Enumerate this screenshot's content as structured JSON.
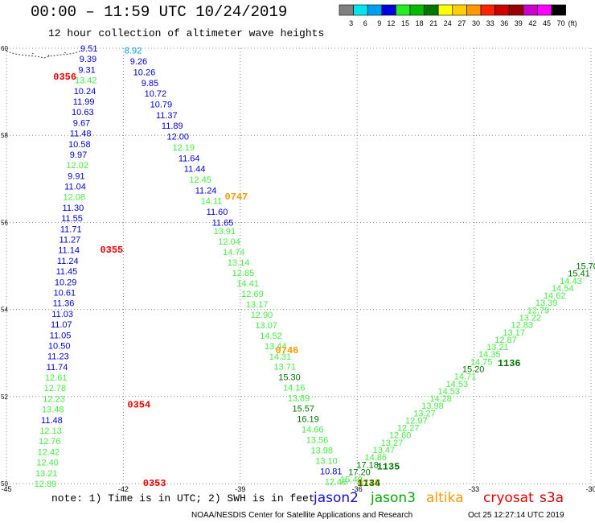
{
  "header": {
    "title": "00:00 – 11:59 UTC 10/24/2019",
    "subtitle": "12 hour collection of altimeter wave heights"
  },
  "colorbar": {
    "unit": "(ft)",
    "bins": [
      {
        "color": "#808080",
        "label": "3"
      },
      {
        "color": "#00e5ee",
        "label": "6"
      },
      {
        "color": "#00a0f0",
        "label": "9"
      },
      {
        "color": "#0000dd",
        "label": "12"
      },
      {
        "color": "#22ee22",
        "label": "15"
      },
      {
        "color": "#00bb00",
        "label": "18"
      },
      {
        "color": "#007700",
        "label": "21"
      },
      {
        "color": "#ffff00",
        "label": "24"
      },
      {
        "color": "#ffd000",
        "label": "27"
      },
      {
        "color": "#ff9900",
        "label": "30"
      },
      {
        "color": "#ff2200",
        "label": "33"
      },
      {
        "color": "#cc0000",
        "label": "36"
      },
      {
        "color": "#990000",
        "label": "39"
      },
      {
        "color": "#cc00cc",
        "label": "42"
      },
      {
        "color": "#ff00ff",
        "label": "45"
      },
      {
        "color": "#000000",
        "label": "70"
      }
    ]
  },
  "legend": {
    "note": "note: 1) Time is in UTC; 2) SWH is in feet",
    "missions": [
      {
        "name": "jason2",
        "color": "#1010ee"
      },
      {
        "name": "jason3",
        "color": "#00aa00"
      },
      {
        "name": "altika",
        "color": "#ff9900"
      },
      {
        "name": "cryosat",
        "color": "#ee0000"
      },
      {
        "name": "s3a",
        "color": "#cc0000"
      }
    ]
  },
  "footer": {
    "credit": "NOAA/NESDIS Center for Satellite Applications and Research",
    "timestamp": "Oct 25 12:27:14 UTC 2019"
  },
  "chart_data": {
    "type": "scatter",
    "xlim": [
      -45,
      -30
    ],
    "ylim": [
      50,
      60
    ],
    "x_ticks": [
      "-45",
      "-42",
      "-39",
      "-36",
      "-33",
      "-30"
    ],
    "y_ticks": [
      "50",
      "52",
      "54",
      "56",
      "58",
      "60"
    ],
    "grid": "dotted",
    "colors": {
      "light_blue": "#00a0f0",
      "blue": "#0000dd",
      "light_green": "#44ee44",
      "dark_green": "#007700",
      "red": "#ee0000",
      "orange": "#ff9900"
    },
    "time_labels": [
      {
        "text": "0356",
        "x": -43.5,
        "y": 59.35,
        "color": "red"
      },
      {
        "text": "0355",
        "x": -42.3,
        "y": 55.38,
        "color": "red"
      },
      {
        "text": "0354",
        "x": -41.6,
        "y": 51.82,
        "color": "red"
      },
      {
        "text": "0353",
        "x": -41.2,
        "y": 50.02,
        "color": "red"
      },
      {
        "text": "0747",
        "x": -39.1,
        "y": 56.6,
        "color": "orange"
      },
      {
        "text": "0746",
        "x": -37.8,
        "y": 53.07,
        "color": "orange"
      },
      {
        "text": "0745",
        "x": -35.7,
        "y": 50.02,
        "color": "orange"
      },
      {
        "text": "1136",
        "x": -32.1,
        "y": 52.77,
        "color": "dark_green"
      },
      {
        "text": "1135",
        "x": -35.2,
        "y": 50.4,
        "color": "dark_green"
      },
      {
        "text": "1134",
        "x": -35.7,
        "y": 50.02,
        "color": "dark_green"
      }
    ],
    "tracks": [
      {
        "x0": -42.88,
        "y0": 60.0,
        "x1": -44.0,
        "y1": 50.0,
        "slant": -0.12,
        "values": [
          {
            "v": "9.51",
            "c": "blue"
          },
          {
            "v": "9.39",
            "c": "blue"
          },
          {
            "v": "9.31",
            "c": "blue"
          },
          {
            "v": "13.42",
            "c": "light_green"
          },
          {
            "v": "10.24",
            "c": "blue"
          },
          {
            "v": "11.99",
            "c": "blue"
          },
          {
            "v": "10.63",
            "c": "blue"
          },
          {
            "v": "9.67",
            "c": "blue"
          },
          {
            "v": "11.48",
            "c": "blue"
          },
          {
            "v": "10.58",
            "c": "blue"
          },
          {
            "v": "9.97",
            "c": "blue"
          },
          {
            "v": "12.02",
            "c": "light_green"
          },
          {
            "v": "9.91",
            "c": "blue"
          },
          {
            "v": "11.04",
            "c": "blue"
          },
          {
            "v": "12.08",
            "c": "light_green"
          },
          {
            "v": "11.30",
            "c": "blue"
          },
          {
            "v": "11.55",
            "c": "blue"
          },
          {
            "v": "11.71",
            "c": "blue"
          },
          {
            "v": "11.27",
            "c": "blue"
          },
          {
            "v": "11.14",
            "c": "blue"
          },
          {
            "v": "11.24",
            "c": "blue"
          },
          {
            "v": "11.45",
            "c": "blue"
          },
          {
            "v": "10.29",
            "c": "blue"
          },
          {
            "v": "10.61",
            "c": "blue"
          },
          {
            "v": "11.36",
            "c": "blue"
          },
          {
            "v": "11.03",
            "c": "blue"
          },
          {
            "v": "11.07",
            "c": "blue"
          },
          {
            "v": "11.05",
            "c": "blue"
          },
          {
            "v": "10.50",
            "c": "blue"
          },
          {
            "v": "11.23",
            "c": "blue"
          },
          {
            "v": "11.74",
            "c": "blue"
          },
          {
            "v": "12.61",
            "c": "light_green"
          },
          {
            "v": "12.78",
            "c": "light_green"
          },
          {
            "v": "12.23",
            "c": "light_green"
          },
          {
            "v": "13.48",
            "c": "light_green"
          },
          {
            "v": "11.48",
            "c": "blue"
          },
          {
            "v": "12.13",
            "c": "light_green"
          },
          {
            "v": "12.76",
            "c": "light_green"
          },
          {
            "v": "12.42",
            "c": "light_green"
          },
          {
            "v": "12.40",
            "c": "light_green"
          },
          {
            "v": "13.21",
            "c": "light_green"
          },
          {
            "v": "12.89",
            "c": "light_green"
          }
        ]
      },
      {
        "x0": -41.75,
        "y0": 59.95,
        "x1": -39.45,
        "y1": 56.0,
        "slant": 0.0,
        "values": [
          {
            "v": "8.92",
            "c": "light_blue"
          },
          {
            "v": "9.26",
            "c": "blue"
          },
          {
            "v": "10.26",
            "c": "blue"
          },
          {
            "v": "9.85",
            "c": "blue"
          },
          {
            "v": "10.72",
            "c": "blue"
          },
          {
            "v": "10.79",
            "c": "blue"
          },
          {
            "v": "11.37",
            "c": "blue"
          },
          {
            "v": "11.89",
            "c": "blue"
          },
          {
            "v": "12.00",
            "c": "blue"
          },
          {
            "v": "12.19",
            "c": "light_green"
          },
          {
            "v": "11.64",
            "c": "blue"
          },
          {
            "v": "11.44",
            "c": "blue"
          },
          {
            "v": "12.45",
            "c": "light_green"
          },
          {
            "v": "11.24",
            "c": "blue"
          },
          {
            "v": "14.11",
            "c": "light_green"
          },
          {
            "v": "11.60",
            "c": "blue"
          },
          {
            "v": "11.65",
            "c": "blue"
          }
        ]
      },
      {
        "x0": -39.4,
        "y0": 55.8,
        "x1": -36.55,
        "y1": 50.05,
        "slant": 0.0,
        "values": [
          {
            "v": "13.91",
            "c": "light_green"
          },
          {
            "v": "12.04",
            "c": "light_green"
          },
          {
            "v": "14.74",
            "c": "light_green"
          },
          {
            "v": "13.14",
            "c": "light_green"
          },
          {
            "v": "12.85",
            "c": "light_green"
          },
          {
            "v": "14.41",
            "c": "light_green"
          },
          {
            "v": "12.69",
            "c": "light_green"
          },
          {
            "v": "13.17",
            "c": "light_green"
          },
          {
            "v": "12.90",
            "c": "light_green"
          },
          {
            "v": "13.07",
            "c": "light_green"
          },
          {
            "v": "14.52",
            "c": "light_green"
          },
          {
            "v": "13.44",
            "c": "light_green"
          },
          {
            "v": "14.31",
            "c": "light_green"
          },
          {
            "v": "13.71",
            "c": "light_green"
          },
          {
            "v": "15.30",
            "c": "dark_green"
          },
          {
            "v": "14.16",
            "c": "light_green"
          },
          {
            "v": "13.89",
            "c": "light_green"
          },
          {
            "v": "15.57",
            "c": "dark_green"
          },
          {
            "v": "16.19",
            "c": "dark_green"
          },
          {
            "v": "14.66",
            "c": "light_green"
          },
          {
            "v": "13.56",
            "c": "light_green"
          },
          {
            "v": "13.98",
            "c": "light_green"
          },
          {
            "v": "13.10",
            "c": "light_green"
          },
          {
            "v": "10.81",
            "c": "blue"
          },
          {
            "v": "12.48",
            "c": "light_green"
          }
        ]
      },
      {
        "x0": -36.15,
        "y0": 50.1,
        "x1": -30.1,
        "y1": 55.0,
        "slant": 0.0,
        "values": [
          {
            "v": "15.49",
            "c": "light_green"
          },
          {
            "v": "17.20",
            "c": "dark_green"
          },
          {
            "v": "17.18",
            "c": "dark_green"
          },
          {
            "v": "14.86",
            "c": "light_green"
          },
          {
            "v": "13.47",
            "c": "light_green"
          },
          {
            "v": "13.27",
            "c": "light_green"
          },
          {
            "v": "12.60",
            "c": "light_green"
          },
          {
            "v": "12.27",
            "c": "light_green"
          },
          {
            "v": "12.97",
            "c": "light_green"
          },
          {
            "v": "13.27",
            "c": "light_green"
          },
          {
            "v": "13.98",
            "c": "light_green"
          },
          {
            "v": "14.28",
            "c": "light_green"
          },
          {
            "v": "14.53",
            "c": "light_green"
          },
          {
            "v": "14.53",
            "c": "light_green"
          },
          {
            "v": "14.71",
            "c": "light_green"
          },
          {
            "v": "15.20",
            "c": "dark_green"
          },
          {
            "v": "14.75",
            "c": "light_green"
          },
          {
            "v": "14.35",
            "c": "light_green"
          },
          {
            "v": "13.21",
            "c": "light_green"
          },
          {
            "v": "12.87",
            "c": "light_green"
          },
          {
            "v": "13.17",
            "c": "light_green"
          },
          {
            "v": "12.83",
            "c": "light_green"
          },
          {
            "v": "13.22",
            "c": "light_green"
          },
          {
            "v": "12.79",
            "c": "light_green"
          },
          {
            "v": "13.39",
            "c": "light_green"
          },
          {
            "v": "14.62",
            "c": "light_green"
          },
          {
            "v": "14.54",
            "c": "light_green"
          },
          {
            "v": "14.43",
            "c": "light_green"
          },
          {
            "v": "15.41",
            "c": "dark_green"
          },
          {
            "v": "15.70",
            "c": "dark_green"
          }
        ]
      }
    ]
  }
}
